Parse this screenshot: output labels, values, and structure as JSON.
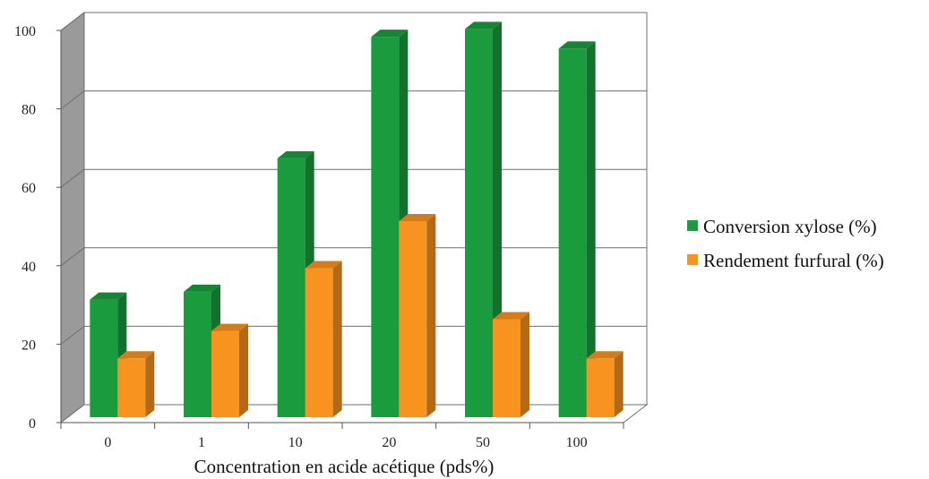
{
  "chart_data": {
    "type": "bar",
    "categories": [
      "0",
      "1",
      "10",
      "20",
      "50",
      "100"
    ],
    "series": [
      {
        "name": "Conversion xylose (%)",
        "values": [
          30,
          32,
          66,
          97,
          99,
          94
        ],
        "color": "#1a9c3e"
      },
      {
        "name": "Rendement furfural (%)",
        "values": [
          15,
          22,
          38,
          50,
          25,
          15
        ],
        "color": "#f7931e"
      }
    ],
    "xlabel": "Concentration en acide acétique (pds%)",
    "ylabel": "",
    "ylim": [
      0,
      100
    ],
    "yticks": [
      "0",
      "20",
      "40",
      "60",
      "80",
      "100"
    ],
    "grid": true,
    "legend_position": "right",
    "style": "3d-clustered-column"
  }
}
